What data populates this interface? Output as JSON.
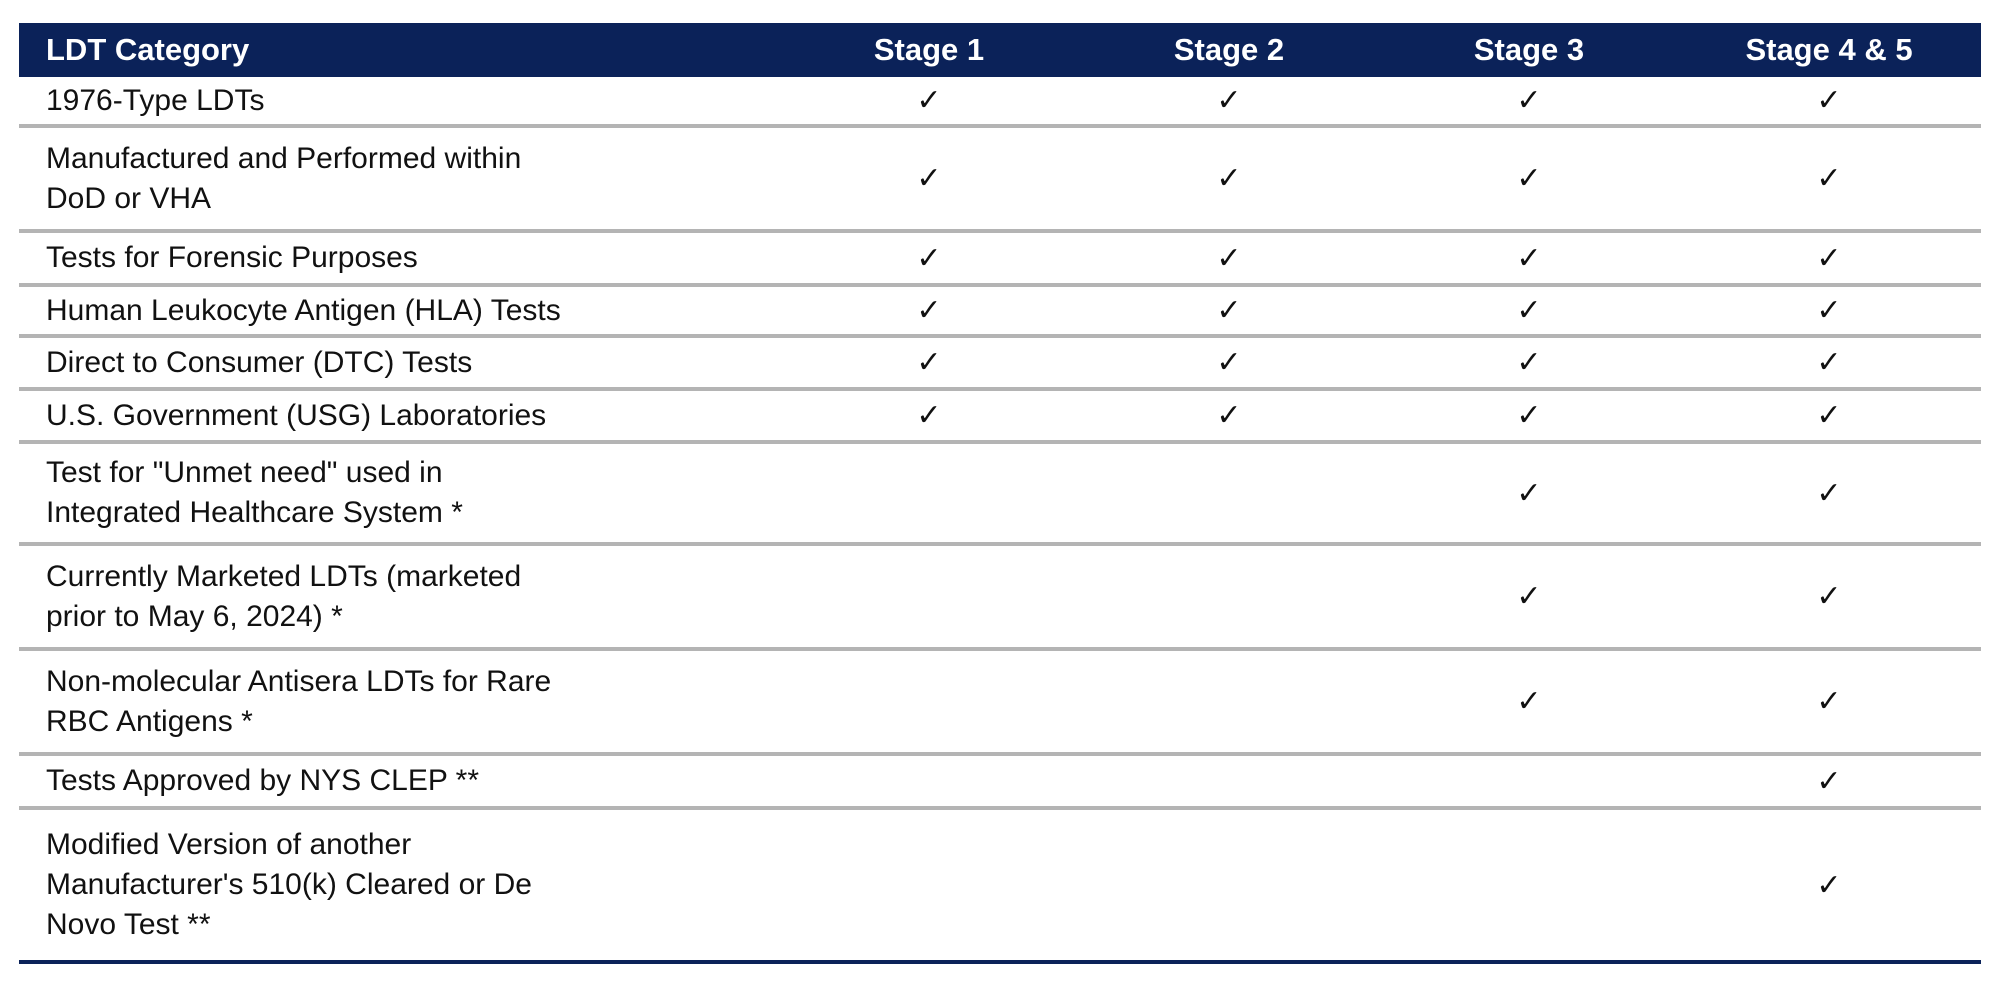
{
  "table": {
    "headers": [
      "LDT Category",
      "Stage 1",
      "Stage 2",
      "Stage 3",
      "Stage 4 & 5"
    ],
    "check_symbol": "✓",
    "header_color": "#0b2259",
    "rows": [
      {
        "category": "1976-Type LDTs",
        "stages": [
          true,
          true,
          true,
          true
        ]
      },
      {
        "category": "Manufactured and Performed within DoD or VHA",
        "stages": [
          true,
          true,
          true,
          true
        ]
      },
      {
        "category": "Tests for Forensic Purposes",
        "stages": [
          true,
          true,
          true,
          true
        ]
      },
      {
        "category": "Human Leukocyte Antigen (HLA) Tests",
        "stages": [
          true,
          true,
          true,
          true
        ]
      },
      {
        "category": "Direct to Consumer (DTC) Tests",
        "stages": [
          true,
          true,
          true,
          true
        ]
      },
      {
        "category": "U.S. Government (USG) Laboratories",
        "stages": [
          true,
          true,
          true,
          true
        ]
      },
      {
        "category": "Test for \"Unmet need\" used in Integrated Healthcare System *",
        "stages": [
          false,
          false,
          true,
          true
        ]
      },
      {
        "category": "Currently Marketed LDTs (marketed prior to May 6, 2024) *",
        "stages": [
          false,
          false,
          true,
          true
        ]
      },
      {
        "category": "Non-molecular Antisera LDTs for Rare RBC Antigens *",
        "stages": [
          false,
          false,
          true,
          true
        ]
      },
      {
        "category": "Tests Approved by NYS CLEP **",
        "stages": [
          false,
          false,
          false,
          true
        ]
      },
      {
        "category": "Modified Version of another Manufacturer's 510(k) Cleared or De Novo Test **",
        "stages": [
          false,
          false,
          false,
          true
        ]
      }
    ]
  }
}
